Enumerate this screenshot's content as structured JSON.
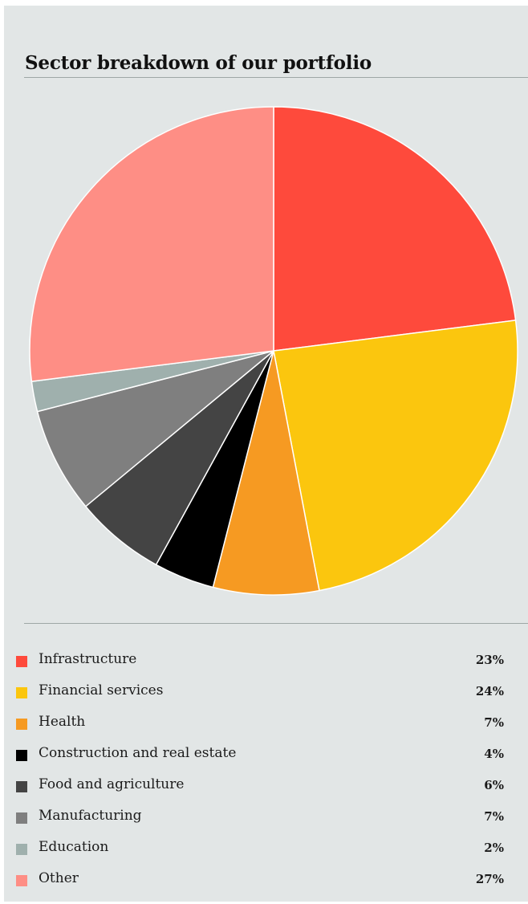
{
  "chart_data": {
    "type": "pie",
    "title": "Sector breakdown of our portfolio",
    "categories": [
      "Infrastructure",
      "Financial services",
      "Health",
      "Construction and real estate",
      "Food and agriculture",
      "Manufacturing",
      "Education",
      "Other"
    ],
    "values": [
      23,
      24,
      7,
      4,
      6,
      7,
      2,
      27
    ],
    "value_labels": [
      "23%",
      "24%",
      "7%",
      "4%",
      "6%",
      "7%",
      "2%",
      "27%"
    ],
    "colors": [
      "#fe4a3c",
      "#fbc60e",
      "#f69a22",
      "#000000",
      "#444444",
      "#7f7f7f",
      "#9fb0ad",
      "#fe8e85"
    ],
    "legend_position": "bottom",
    "start_angle": "top, clockwise"
  }
}
